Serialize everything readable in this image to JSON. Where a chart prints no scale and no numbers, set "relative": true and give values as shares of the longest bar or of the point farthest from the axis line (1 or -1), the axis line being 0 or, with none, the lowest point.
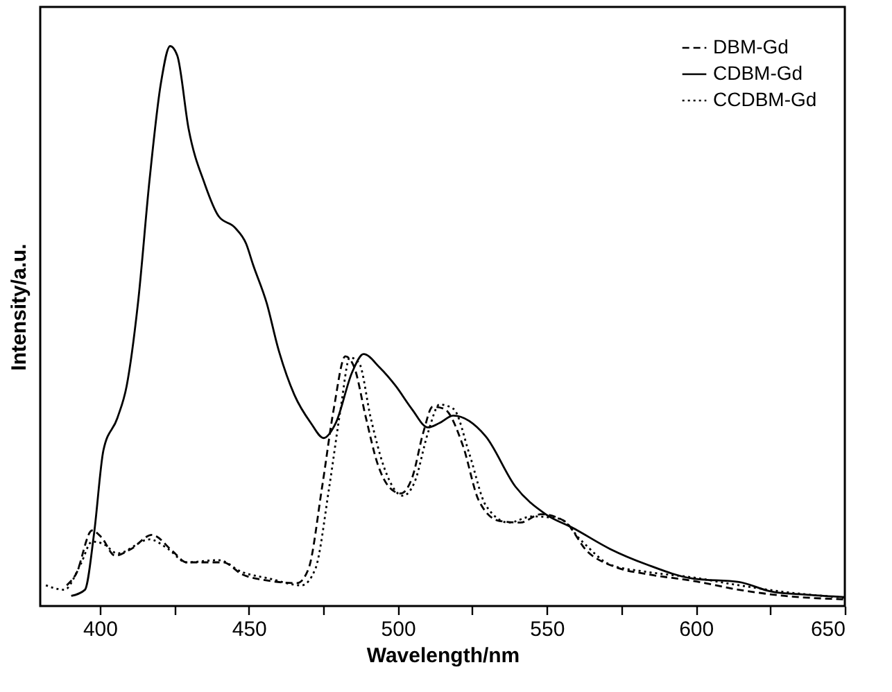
{
  "chart_data": {
    "type": "line",
    "xlabel": "Wavelength/nm",
    "ylabel": "Intensity/a.u.",
    "relative": true,
    "xlim": [
      380,
      650
    ],
    "xticks": [
      400,
      {
        "value": 425,
        "label": null
      },
      450,
      {
        "value": 475,
        "label": null
      },
      500,
      {
        "value": 525,
        "label": null
      },
      550,
      {
        "value": 575,
        "label": null
      },
      600,
      {
        "value": 625,
        "label": null
      },
      650
    ],
    "legend": "top right",
    "grid": false,
    "series": [
      {
        "name": "DBM-Gd",
        "color": "#000000",
        "line_style": "dashed",
        "x": [
          388.9,
          392,
          397.4,
          400.5,
          405.1,
          410.5,
          417.5,
          424.4,
          429.1,
          436.8,
          441.4,
          447.6,
          456.9,
          466.2,
          470,
          474.6,
          478.5,
          482.4,
          485.4,
          489.3,
          493.2,
          497,
          500.9,
          504.8,
          508.6,
          511.7,
          515.6,
          521.8,
          527.2,
          534.1,
          541.1,
          548,
          555.8,
          563.5,
          572.8,
          583.6,
          599,
          614.5,
          629.9,
          650
        ],
        "values": [
          0.037,
          0.057,
          0.135,
          0.123,
          0.09,
          0.102,
          0.127,
          0.098,
          0.078,
          0.078,
          0.078,
          0.057,
          0.045,
          0.041,
          0.066,
          0.213,
          0.352,
          0.446,
          0.426,
          0.336,
          0.254,
          0.213,
          0.201,
          0.229,
          0.311,
          0.356,
          0.352,
          0.287,
          0.188,
          0.152,
          0.149,
          0.164,
          0.152,
          0.098,
          0.07,
          0.057,
          0.045,
          0.029,
          0.018,
          0.012
        ]
      },
      {
        "name": "CDBM-Gd",
        "color": "#000000",
        "line_style": "solid",
        "x": [
          390.4,
          395,
          398.1,
          401.2,
          405.9,
          409,
          412.8,
          416.7,
          420.5,
          423.6,
          426,
          429.8,
          435.2,
          439.9,
          445.3,
          449.1,
          451.4,
          456,
          459.9,
          465.3,
          470.8,
          475.1,
          479.2,
          484.7,
          488.5,
          493.9,
          499.3,
          504.7,
          510.1,
          514,
          518.6,
          529.5,
          539.5,
          549.6,
          558.9,
          571.2,
          583.6,
          599,
          614.5,
          625.3,
          637.7,
          650
        ],
        "values": [
          0.018,
          0.029,
          0.131,
          0.278,
          0.336,
          0.393,
          0.541,
          0.762,
          0.934,
          1,
          0.983,
          0.852,
          0.754,
          0.696,
          0.676,
          0.647,
          0.61,
          0.541,
          0.459,
          0.377,
          0.327,
          0.3,
          0.327,
          0.418,
          0.45,
          0.426,
          0.393,
          0.352,
          0.319,
          0.327,
          0.34,
          0.303,
          0.213,
          0.164,
          0.139,
          0.102,
          0.074,
          0.049,
          0.043,
          0.026,
          0.02,
          0.016
        ]
      },
      {
        "name": "CCDBM-Gd",
        "color": "#000000",
        "line_style": "dotted",
        "x": [
          381.9,
          388.1,
          393.5,
          397.4,
          401.2,
          405.9,
          416.7,
          422.9,
          429.1,
          439.9,
          447.6,
          456.9,
          467.7,
          472.3,
          477,
          480.8,
          483.9,
          487,
          490.9,
          495.5,
          501.7,
          505.6,
          510.2,
          514,
          518.7,
          524.1,
          529.5,
          537.2,
          545,
          554.2,
          561.9,
          571.2,
          583.6,
          599,
          614.5,
          629.9,
          650
        ],
        "values": [
          0.037,
          0.029,
          0.074,
          0.115,
          0.111,
          0.094,
          0.119,
          0.102,
          0.078,
          0.082,
          0.061,
          0.049,
          0.037,
          0.066,
          0.213,
          0.352,
          0.444,
          0.434,
          0.336,
          0.246,
          0.197,
          0.221,
          0.311,
          0.36,
          0.352,
          0.27,
          0.18,
          0.149,
          0.16,
          0.156,
          0.115,
          0.074,
          0.061,
          0.051,
          0.037,
          0.025,
          0.015
        ]
      }
    ]
  }
}
